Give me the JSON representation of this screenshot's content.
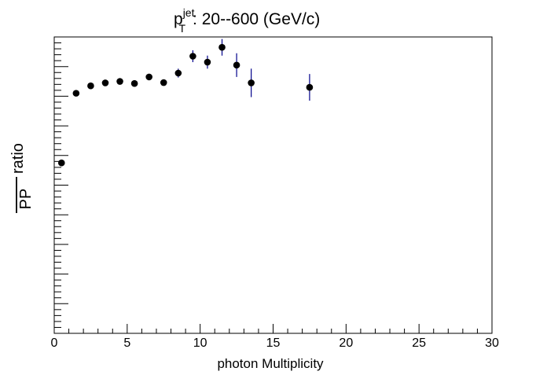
{
  "chart_data": {
    "type": "scatter",
    "title": {
      "base": "p",
      "sup": "jet",
      "sub": "T",
      "rest": ":  20--600 (GeV/c)"
    },
    "xlabel": "photon Multiplicity",
    "ylabel": {
      "fraction_top": "",
      "fraction_bottom": "PP",
      "suffix": "ratio"
    },
    "xlim": [
      0,
      30
    ],
    "ylim": [
      0,
      1
    ],
    "x_ticks": [
      "0",
      "5",
      "10",
      "15",
      "20",
      "25",
      "30"
    ],
    "grid": false,
    "legend": "none",
    "marker_color": "#000000",
    "error_bar_color": "#00008b",
    "series": [
      {
        "x": [
          0.5,
          1.5,
          2.5,
          3.5,
          4.5,
          5.5,
          6.5,
          7.5,
          8.5,
          9.5,
          10.5,
          11.5,
          12.5,
          13.5,
          17.5
        ],
        "y": [
          0.575,
          0.81,
          0.835,
          0.845,
          0.85,
          0.843,
          0.865,
          0.846,
          0.878,
          0.935,
          0.915,
          0.965,
          0.905,
          0.845,
          0.83
        ],
        "yerr": [
          0.01,
          0.01,
          0.008,
          0.008,
          0.008,
          0.008,
          0.01,
          0.01,
          0.015,
          0.02,
          0.022,
          0.028,
          0.04,
          0.048,
          0.045
        ]
      }
    ]
  }
}
